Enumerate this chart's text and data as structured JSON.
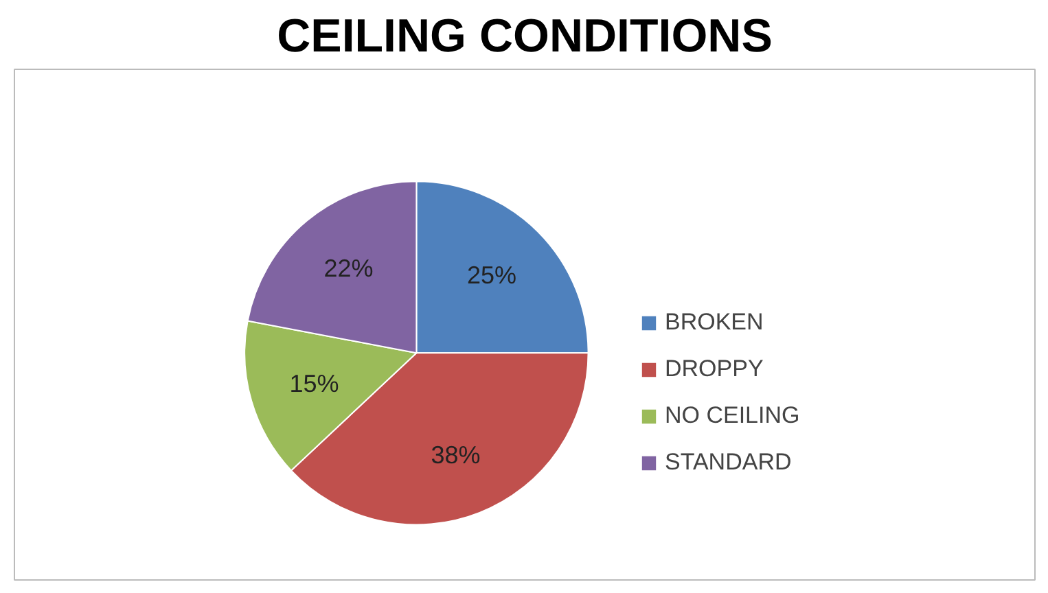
{
  "chart_data": {
    "type": "pie",
    "title": "CEILING CONDITIONS",
    "categories": [
      "BROKEN",
      "DROPPY",
      "NO CEILING",
      "STANDARD"
    ],
    "values": [
      25,
      38,
      15,
      22
    ],
    "colors": [
      "#4f81bd",
      "#c0504d",
      "#9bbb59",
      "#8064a2"
    ],
    "value_labels": [
      "25%",
      "38%",
      "15%",
      "22%"
    ],
    "legend": "right"
  }
}
